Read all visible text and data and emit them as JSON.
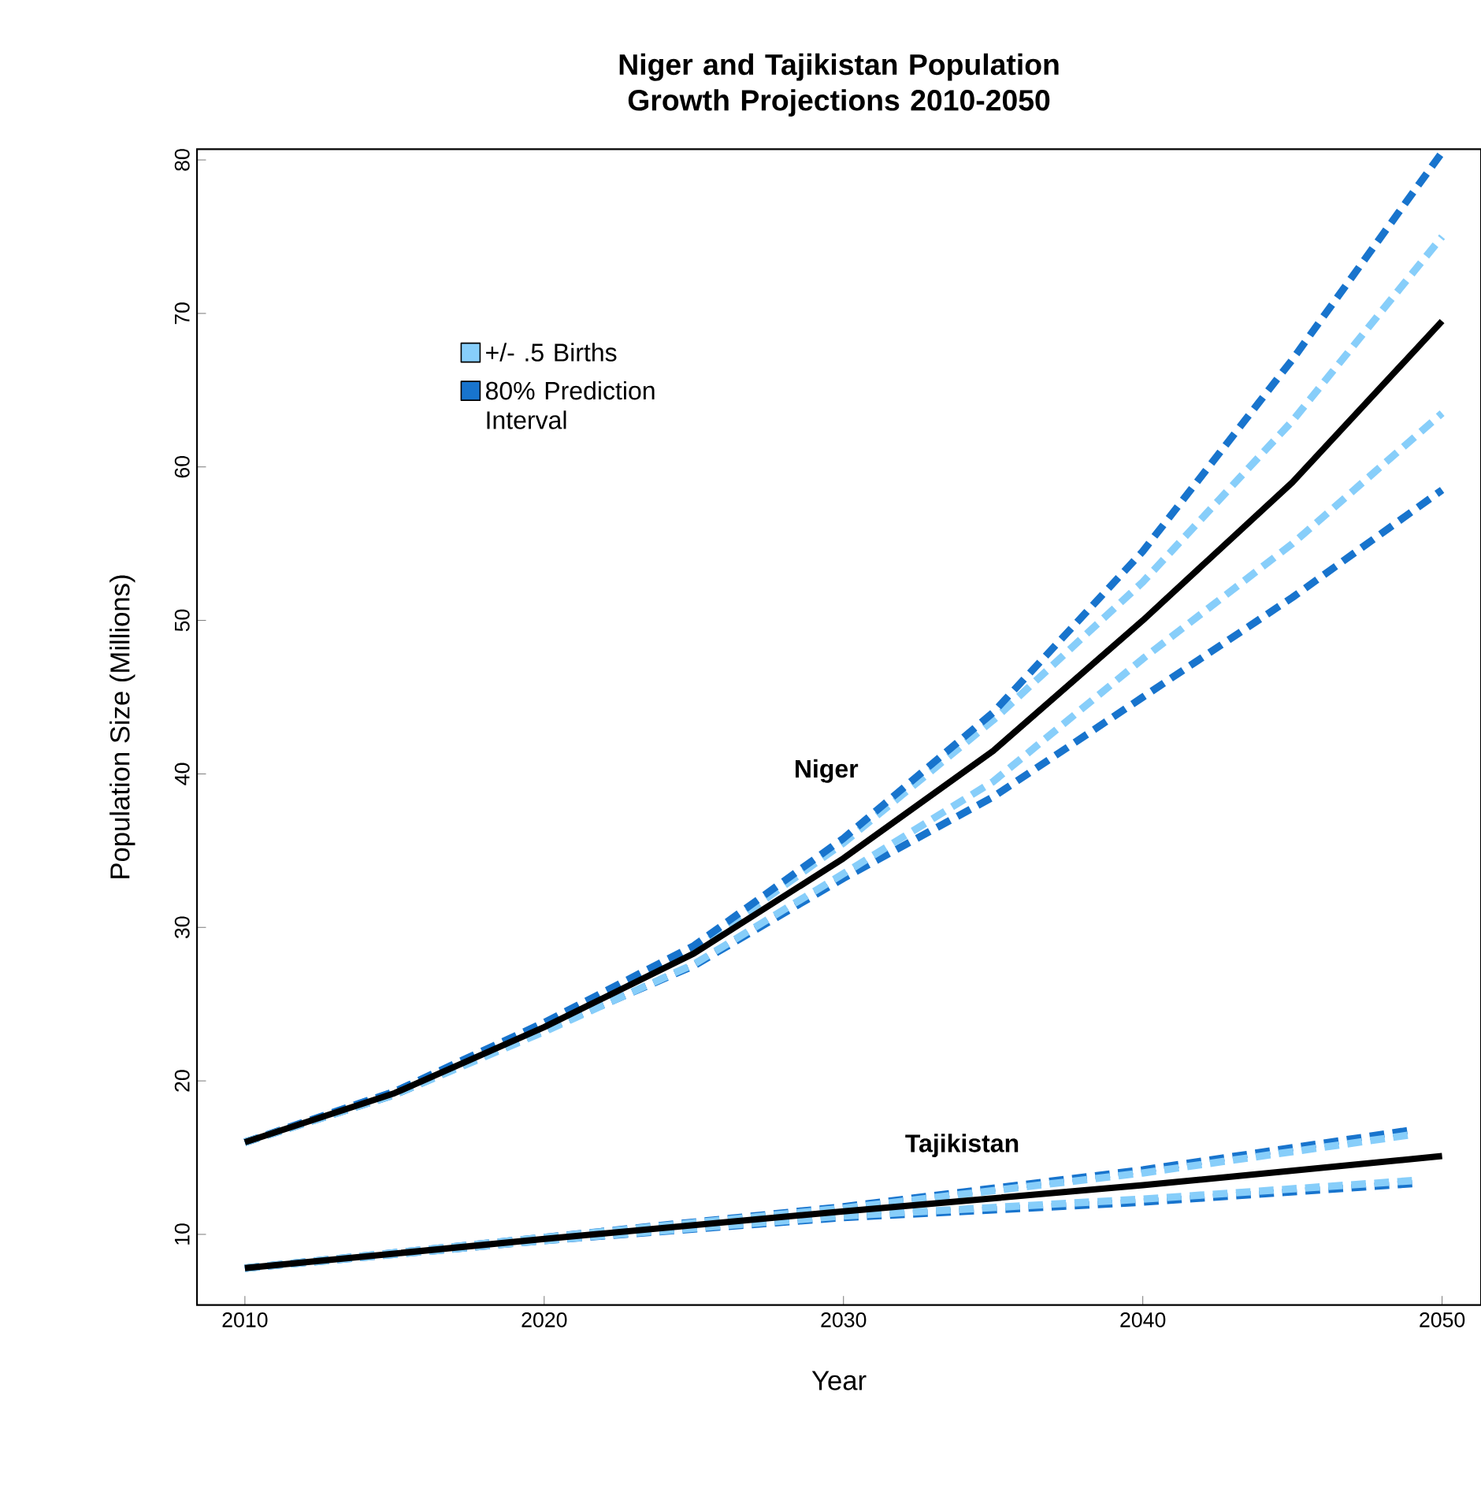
{
  "chart_data": {
    "type": "line",
    "title": "Niger and Tajikistan Population Growth Projections 2010-2050",
    "xlabel": "Year",
    "ylabel": "Population Size (Millions)",
    "xlim": [
      2008.4,
      2051.3
    ],
    "ylim": [
      5.4,
      80.7
    ],
    "xticks": [
      2010,
      2020,
      2030,
      2040,
      2050
    ],
    "yticks": [
      10,
      20,
      30,
      40,
      50,
      60,
      70,
      80
    ],
    "grid": false,
    "legend": "top left",
    "series": [
      {
        "name": "+/- .5 Births",
        "color": "#87cefa",
        "line_style": "dashed",
        "x": [
          2010,
          2015,
          2020,
          2025,
          2030,
          2035,
          2040,
          2045,
          2050
        ],
        "values": [
          16,
          19.3,
          23.7,
          28.5,
          35.5,
          43.5,
          52.5,
          63,
          75
        ]
      },
      {
        "name": "80% Prediction Interval",
        "color": "#1874cd",
        "line_style": "dashed",
        "x": [
          2010,
          2015,
          2020,
          2025,
          2030,
          2035,
          2040,
          2045,
          2050
        ],
        "values": [
          16,
          19.3,
          23.8,
          28.8,
          35.8,
          44,
          54.5,
          67,
          80.5
        ]
      },
      {
        "color": "#1874cd",
        "line_style": "dashed",
        "x": [
          2010,
          2015,
          2020,
          2025,
          2030,
          2035,
          2040,
          2045,
          2050
        ],
        "values": [
          16,
          19.1,
          23.3,
          27.5,
          33.2,
          38.5,
          45,
          51.5,
          58.5
        ]
      },
      {
        "color": "#87cefa",
        "line_style": "dashed",
        "x": [
          2010,
          2015,
          2020,
          2025,
          2030,
          2035,
          2040,
          2045,
          2050
        ],
        "values": [
          16,
          19.1,
          23.2,
          27.6,
          33.5,
          39.5,
          47.5,
          55,
          63.5
        ]
      },
      {
        "color": "#000000",
        "line_style": "solid",
        "x": [
          2010,
          2015,
          2020,
          2025,
          2030,
          2035,
          2040,
          2045,
          2050
        ],
        "values": [
          16,
          19.2,
          23.5,
          28.3,
          34.5,
          41.5,
          50,
          59,
          69.5
        ]
      },
      {
        "color": "#1874cd",
        "line_style": "dashed",
        "x": [
          2010,
          2020,
          2030,
          2040,
          2049
        ],
        "values": [
          7.8,
          9.8,
          11.8,
          14.2,
          16.8
        ]
      },
      {
        "color": "#1874cd",
        "line_style": "dashed",
        "x": [
          2010,
          2020,
          2030,
          2040,
          2049
        ],
        "values": [
          7.8,
          9.6,
          11.1,
          12.1,
          13.3
        ]
      },
      {
        "color": "#87cefa",
        "line_style": "dashed",
        "x": [
          2010,
          2020,
          2030,
          2040,
          2049
        ],
        "values": [
          7.8,
          9.8,
          11.7,
          14,
          16.5
        ]
      },
      {
        "color": "#87cefa",
        "line_style": "dashed",
        "x": [
          2010,
          2020,
          2030,
          2040,
          2049
        ],
        "values": [
          7.8,
          9.6,
          11.2,
          12.3,
          13.5
        ]
      },
      {
        "color": "#000000",
        "line_style": "solid",
        "x": [
          2010,
          2020,
          2030,
          2040,
          2050
        ],
        "values": [
          7.8,
          9.7,
          11.5,
          13.2,
          15.1
        ]
      }
    ],
    "annotations": [
      "Niger",
      "Tajikistan"
    ]
  }
}
